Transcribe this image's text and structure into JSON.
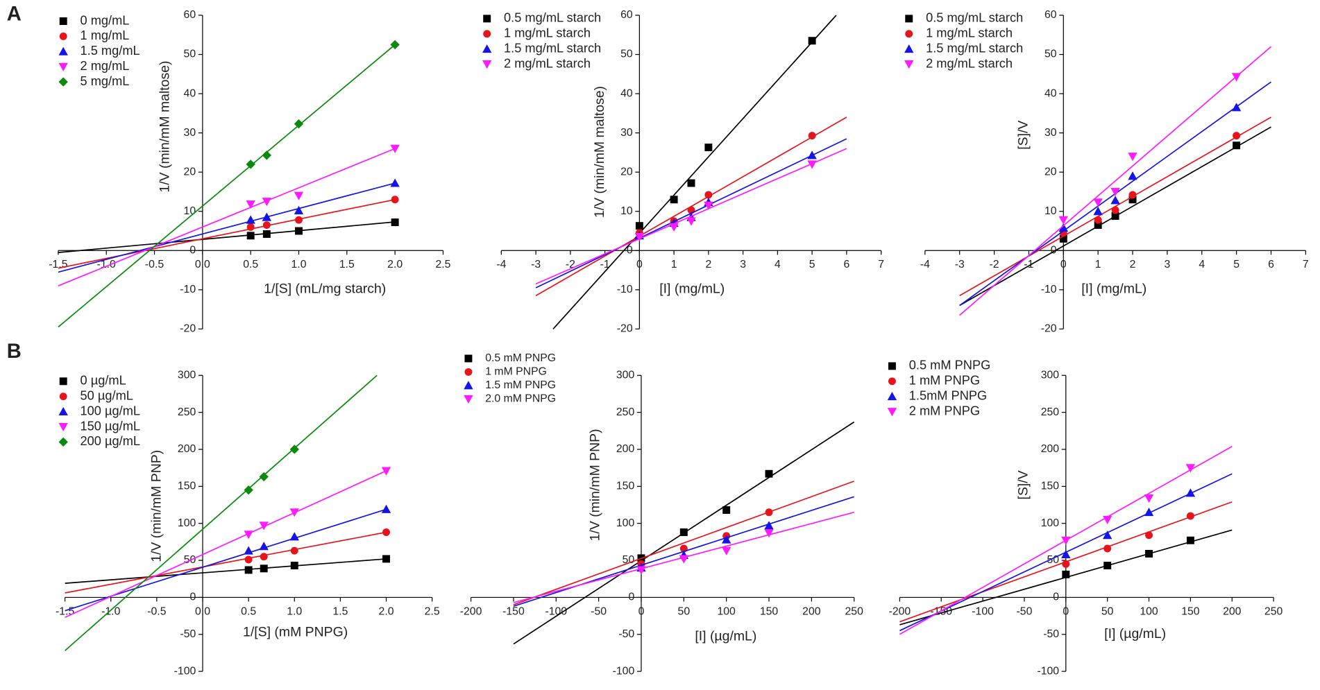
{
  "panels": [
    "A",
    "B"
  ],
  "chart_data": [
    {
      "type": "scatter",
      "xlabel": "1/[S] (mL/mg starch)",
      "ylabel": "1/V (min/mM maltose)",
      "xlim": [
        -1.5,
        2.5
      ],
      "xticks": [
        {
          "value": -1.5,
          "label": "-1.5"
        },
        {
          "value": -1,
          "label": "-1.0"
        },
        {
          "value": -0.5,
          "label": "-0.5"
        },
        {
          "value": 0,
          "label": "0.0"
        },
        0.5,
        {
          "value": 1,
          "label": "1.0"
        },
        1.5,
        {
          "value": 2,
          "label": "2.0"
        },
        2.5
      ],
      "ylim": [
        -20,
        60
      ],
      "yticks": [
        -20,
        -10,
        0,
        10,
        20,
        30,
        40,
        50,
        60
      ],
      "x": [
        0.5,
        0.667,
        1,
        2
      ],
      "series": [
        {
          "name": "0 mg/mL",
          "color": "#000000",
          "marker": "square",
          "values": [
            3.8,
            4.2,
            5,
            7.2
          ],
          "fit_x": [
            -1.5,
            2
          ],
          "fit_y": [
            -0.5,
            7.3
          ]
        },
        {
          "name": "1 mg/mL",
          "color": "#e8141b",
          "marker": "circle",
          "values": [
            6,
            6.5,
            7.8,
            13
          ],
          "fit_x": [
            -1.5,
            2
          ],
          "fit_y": [
            -4.5,
            13
          ]
        },
        {
          "name": "1.5 mg/mL",
          "color": "#1414e6",
          "marker": "triangle-up",
          "values": [
            7.8,
            8.5,
            10.2,
            17.2
          ],
          "fit_x": [
            -1.5,
            2
          ],
          "fit_y": [
            -5.5,
            17.2
          ]
        },
        {
          "name": "2 mg/mL",
          "color": "#ff1aff",
          "marker": "triangle-down",
          "values": [
            11.8,
            12.5,
            14,
            26
          ],
          "fit_x": [
            -1.5,
            2
          ],
          "fit_y": [
            -9,
            26
          ]
        },
        {
          "name": "5 mg/mL",
          "color": "#0a8a0a",
          "marker": "diamond",
          "values": [
            22,
            24.3,
            32.3,
            52.5
          ],
          "fit_x": [
            -1.5,
            2
          ],
          "fit_y": [
            -19.5,
            52.5
          ]
        }
      ]
    },
    {
      "type": "scatter",
      "xlabel": "[I] (mg/mL)",
      "ylabel": "1/V (min/mM maltose)",
      "xlim": [
        -4,
        7
      ],
      "xticks": [
        -4,
        -3,
        -2,
        -1,
        0,
        1,
        2,
        3,
        4,
        5,
        6,
        7
      ],
      "ylim": [
        -20,
        60
      ],
      "yticks": [
        -20,
        -10,
        0,
        10,
        20,
        30,
        40,
        50,
        60
      ],
      "x": [
        0,
        1,
        1.5,
        2,
        5
      ],
      "series": [
        {
          "name": "0.5 mg/mL starch",
          "color": "#000000",
          "marker": "square",
          "values": [
            6.3,
            13,
            17.2,
            26.3,
            53.5
          ],
          "fit_x": [
            -2.5,
            5.7
          ],
          "fit_y": [
            -20,
            60
          ]
        },
        {
          "name": "1 mg/mL starch",
          "color": "#e8141b",
          "marker": "circle",
          "values": [
            4.5,
            7.5,
            10.3,
            14.2,
            29.3
          ],
          "fit_x": [
            -3,
            6
          ],
          "fit_y": [
            -11.5,
            34
          ]
        },
        {
          "name": "1.5 mg/mL starch",
          "color": "#1414e6",
          "marker": "triangle-up",
          "values": [
            3.8,
            7,
            8.5,
            12.3,
            24.3
          ],
          "fit_x": [
            -3,
            6
          ],
          "fit_y": [
            -9.5,
            28.5
          ]
        },
        {
          "name": "2 mg/mL starch",
          "color": "#ff1aff",
          "marker": "triangle-down",
          "values": [
            3.5,
            6,
            7.5,
            11.5,
            22
          ],
          "fit_x": [
            -3,
            6
          ],
          "fit_y": [
            -8.5,
            26
          ]
        }
      ]
    },
    {
      "type": "scatter",
      "xlabel": "[I] (mg/mL)",
      "ylabel": "[S]/V",
      "xlim": [
        -4,
        7
      ],
      "xticks": [
        -4,
        -3,
        -2,
        -1,
        0,
        1,
        2,
        3,
        4,
        5,
        6,
        7
      ],
      "ylim": [
        -20,
        60
      ],
      "yticks": [
        -20,
        -10,
        0,
        10,
        20,
        30,
        40,
        50,
        60
      ],
      "x": [
        0,
        1,
        1.5,
        2,
        5
      ],
      "series": [
        {
          "name": "0.5 mg/mL starch",
          "color": "#000000",
          "marker": "square",
          "values": [
            3,
            6.5,
            8.8,
            13,
            26.8
          ],
          "fit_x": [
            -3,
            6
          ],
          "fit_y": [
            -14,
            31.5
          ]
        },
        {
          "name": "1 mg/mL starch",
          "color": "#e8141b",
          "marker": "circle",
          "values": [
            4.5,
            7.8,
            10.3,
            14.2,
            29.3
          ],
          "fit_x": [
            -3,
            6
          ],
          "fit_y": [
            -11.5,
            34
          ]
        },
        {
          "name": "1.5 mg/mL starch",
          "color": "#1414e6",
          "marker": "triangle-up",
          "values": [
            5.8,
            10,
            12.8,
            19,
            36.5
          ],
          "fit_x": [
            -3,
            6
          ],
          "fit_y": [
            -14,
            43
          ]
        },
        {
          "name": "2 mg/mL starch",
          "color": "#ff1aff",
          "marker": "triangle-down",
          "values": [
            7.8,
            12.3,
            15,
            24,
            44.3
          ],
          "fit_x": [
            -3,
            6
          ],
          "fit_y": [
            -16.5,
            52
          ]
        }
      ]
    },
    {
      "type": "scatter",
      "xlabel": "1/[S] (mM PNPG)",
      "ylabel": "1/V (min/mM PNP)",
      "xlim": [
        -1.5,
        2.5
      ],
      "xticks": [
        {
          "value": -1.5,
          "label": "-1.5"
        },
        {
          "value": -1,
          "label": "-1.0"
        },
        {
          "value": -0.5,
          "label": "-0.5"
        },
        {
          "value": 0,
          "label": "0.0"
        },
        0.5,
        {
          "value": 1,
          "label": "1.0"
        },
        1.5,
        {
          "value": 2,
          "label": "2.0"
        },
        2.5
      ],
      "ylim": [
        -100,
        300
      ],
      "yticks": [
        -100,
        -50,
        0,
        50,
        100,
        150,
        200,
        250,
        300
      ],
      "x": [
        0.5,
        0.667,
        1,
        2
      ],
      "series": [
        {
          "name": "0 µg/mL",
          "color": "#000000",
          "marker": "square",
          "values": [
            37,
            39,
            43,
            52
          ],
          "fit_x": [
            -1.5,
            2
          ],
          "fit_y": [
            19,
            52
          ]
        },
        {
          "name": "50 µg/mL",
          "color": "#e8141b",
          "marker": "circle",
          "values": [
            51,
            55,
            63,
            88
          ],
          "fit_x": [
            -1.5,
            2
          ],
          "fit_y": [
            6,
            88
          ]
        },
        {
          "name": "100 µg/mL",
          "color": "#1414e6",
          "marker": "triangle-up",
          "values": [
            63,
            69,
            82,
            119
          ],
          "fit_x": [
            -1.5,
            2
          ],
          "fit_y": [
            -18,
            119
          ]
        },
        {
          "name": "150 µg/mL",
          "color": "#ff1aff",
          "marker": "triangle-down",
          "values": [
            85,
            97,
            115,
            171
          ],
          "fit_x": [
            -1.5,
            2
          ],
          "fit_y": [
            -27,
            171
          ]
        },
        {
          "name": "200 µg/mL",
          "color": "#0a8a0a",
          "marker": "diamond",
          "values": [
            145,
            163,
            200,
            null
          ],
          "fit_x": [
            -1.5,
            1.9
          ],
          "fit_y": [
            -72,
            300
          ]
        }
      ]
    },
    {
      "type": "scatter",
      "xlabel": "[I] (µg/mL)",
      "ylabel": "1/V (min/mM PNP)",
      "xlim": [
        -200,
        250
      ],
      "xticks": [
        -200,
        -150,
        -100,
        -50,
        0,
        50,
        100,
        150,
        200,
        250
      ],
      "ylim": [
        -100,
        300
      ],
      "yticks": [
        -100,
        -50,
        0,
        50,
        100,
        150,
        200,
        250,
        300
      ],
      "x": [
        0,
        50,
        100,
        150
      ],
      "series": [
        {
          "name": "0.5 mM PNPG",
          "color": "#000000",
          "marker": "square",
          "values": [
            53,
            88,
            118,
            167
          ],
          "fit_x": [
            -150,
            250
          ],
          "fit_y": [
            -63,
            237
          ]
        },
        {
          "name": "1 mM PNPG",
          "color": "#e8141b",
          "marker": "circle",
          "values": [
            45,
            66,
            83,
            115
          ],
          "fit_x": [
            -150,
            250
          ],
          "fit_y": [
            -10,
            157
          ]
        },
        {
          "name": "1.5 mM PNPG",
          "color": "#1414e6",
          "marker": "triangle-up",
          "values": [
            40,
            57,
            78,
            97
          ],
          "fit_x": [
            -150,
            250
          ],
          "fit_y": [
            -12,
            136
          ]
        },
        {
          "name": "2.0 mM PNPG",
          "color": "#ff1aff",
          "marker": "triangle-down",
          "values": [
            37,
            52,
            63,
            87
          ],
          "fit_x": [
            -150,
            250
          ],
          "fit_y": [
            -7,
            115
          ]
        }
      ]
    },
    {
      "type": "scatter",
      "xlabel": "[I] (µg/mL)",
      "ylabel": "[S]/V",
      "xlim": [
        -200,
        250
      ],
      "xticks": [
        -200,
        -150,
        -100,
        -50,
        0,
        50,
        100,
        150,
        200,
        250
      ],
      "ylim": [
        -100,
        300
      ],
      "yticks": [
        -100,
        -50,
        0,
        50,
        100,
        150,
        200,
        250,
        300
      ],
      "x": [
        0,
        50,
        100,
        150
      ],
      "series": [
        {
          "name": "0.5 mM PNPG",
          "color": "#000000",
          "marker": "square",
          "values": [
            31,
            43,
            59,
            77
          ],
          "fit_x": [
            -200,
            200
          ],
          "fit_y": [
            -37,
            91
          ]
        },
        {
          "name": "1 mM PNPG",
          "color": "#e8141b",
          "marker": "circle",
          "values": [
            45,
            66,
            84,
            110
          ],
          "fit_x": [
            -200,
            200
          ],
          "fit_y": [
            -33,
            129
          ]
        },
        {
          "name": "1.5mM PNPG",
          "color": "#1414e6",
          "marker": "triangle-up",
          "values": [
            58,
            84,
            115,
            141
          ],
          "fit_x": [
            -200,
            200
          ],
          "fit_y": [
            -45,
            167
          ]
        },
        {
          "name": "2 mM PNPG",
          "color": "#ff1aff",
          "marker": "triangle-down",
          "values": [
            77,
            105,
            134,
            175
          ],
          "fit_x": [
            -200,
            200
          ],
          "fit_y": [
            -50,
            204
          ]
        }
      ]
    }
  ]
}
